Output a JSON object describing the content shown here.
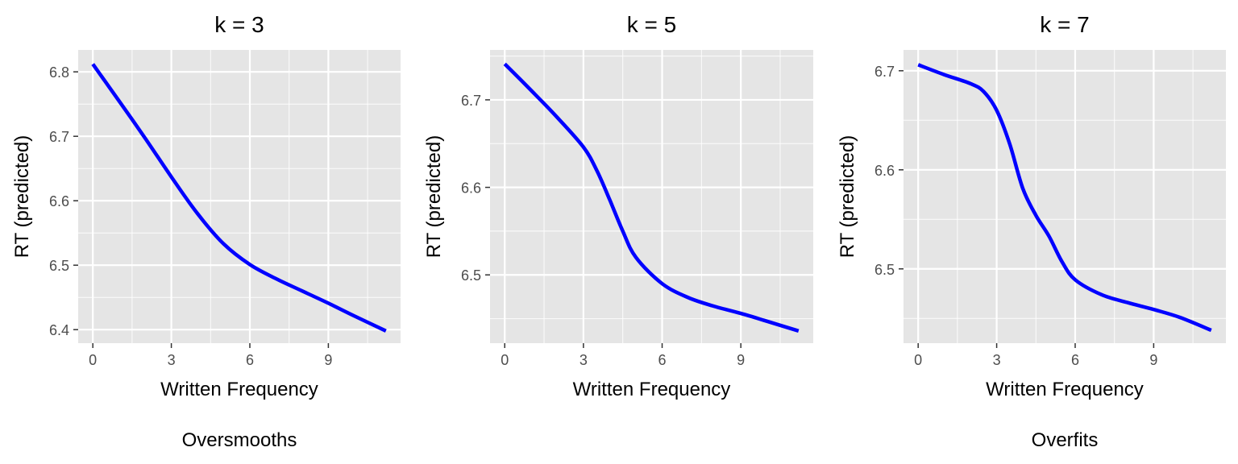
{
  "colors": {
    "panel_bg": "#e5e5e5",
    "grid": "#ffffff",
    "line": "#0000ff",
    "tick_text": "#4d4d4d",
    "tick_mark": "#333333"
  },
  "chart_data": [
    {
      "type": "line",
      "title": "k = 3",
      "xlabel": "Written Frequency",
      "ylabel": "RT (predicted)",
      "caption": "Oversmooths",
      "xlim": [
        -0.56,
        11.76
      ],
      "ylim": [
        6.379,
        6.834
      ],
      "xticks": [
        0,
        3,
        6,
        9
      ],
      "yticks": [
        6.4,
        6.5,
        6.6,
        6.7,
        6.8
      ],
      "grid": true,
      "series": [
        {
          "x": [
            0,
            1,
            2,
            3,
            4,
            5,
            6,
            7,
            8,
            9,
            10,
            11.2
          ],
          "y": [
            6.812,
            6.755,
            6.697,
            6.637,
            6.58,
            6.533,
            6.501,
            6.479,
            6.46,
            6.441,
            6.421,
            6.398
          ]
        }
      ]
    },
    {
      "type": "line",
      "title": "k = 5",
      "xlabel": "Written Frequency",
      "ylabel": "RT (predicted)",
      "caption": "",
      "xlim": [
        -0.56,
        11.76
      ],
      "ylim": [
        6.422,
        6.757
      ],
      "xticks": [
        0,
        3,
        6,
        9
      ],
      "yticks": [
        6.5,
        6.6,
        6.7
      ],
      "grid": true,
      "series": [
        {
          "x": [
            0,
            1,
            2,
            3,
            3.5,
            4,
            4.5,
            5,
            6,
            7,
            8,
            9,
            10,
            11.2
          ],
          "y": [
            6.741,
            6.711,
            6.68,
            6.646,
            6.62,
            6.586,
            6.55,
            6.52,
            6.49,
            6.474,
            6.464,
            6.456,
            6.447,
            6.436
          ]
        }
      ]
    },
    {
      "type": "line",
      "title": "k = 7",
      "xlabel": "Written Frequency",
      "ylabel": "RT (predicted)",
      "caption": "Overfits",
      "xlim": [
        -0.56,
        11.76
      ],
      "ylim": [
        6.425,
        6.721
      ],
      "xticks": [
        0,
        3,
        6,
        9
      ],
      "yticks": [
        6.5,
        6.6,
        6.7
      ],
      "grid": true,
      "series": [
        {
          "x": [
            0,
            1,
            2,
            2.5,
            3,
            3.5,
            4,
            4.5,
            5,
            5.5,
            6,
            7,
            8,
            9,
            10,
            11.2
          ],
          "y": [
            6.706,
            6.696,
            6.687,
            6.679,
            6.66,
            6.626,
            6.581,
            6.554,
            6.533,
            6.507,
            6.489,
            6.474,
            6.466,
            6.459,
            6.451,
            6.438
          ]
        }
      ]
    }
  ]
}
